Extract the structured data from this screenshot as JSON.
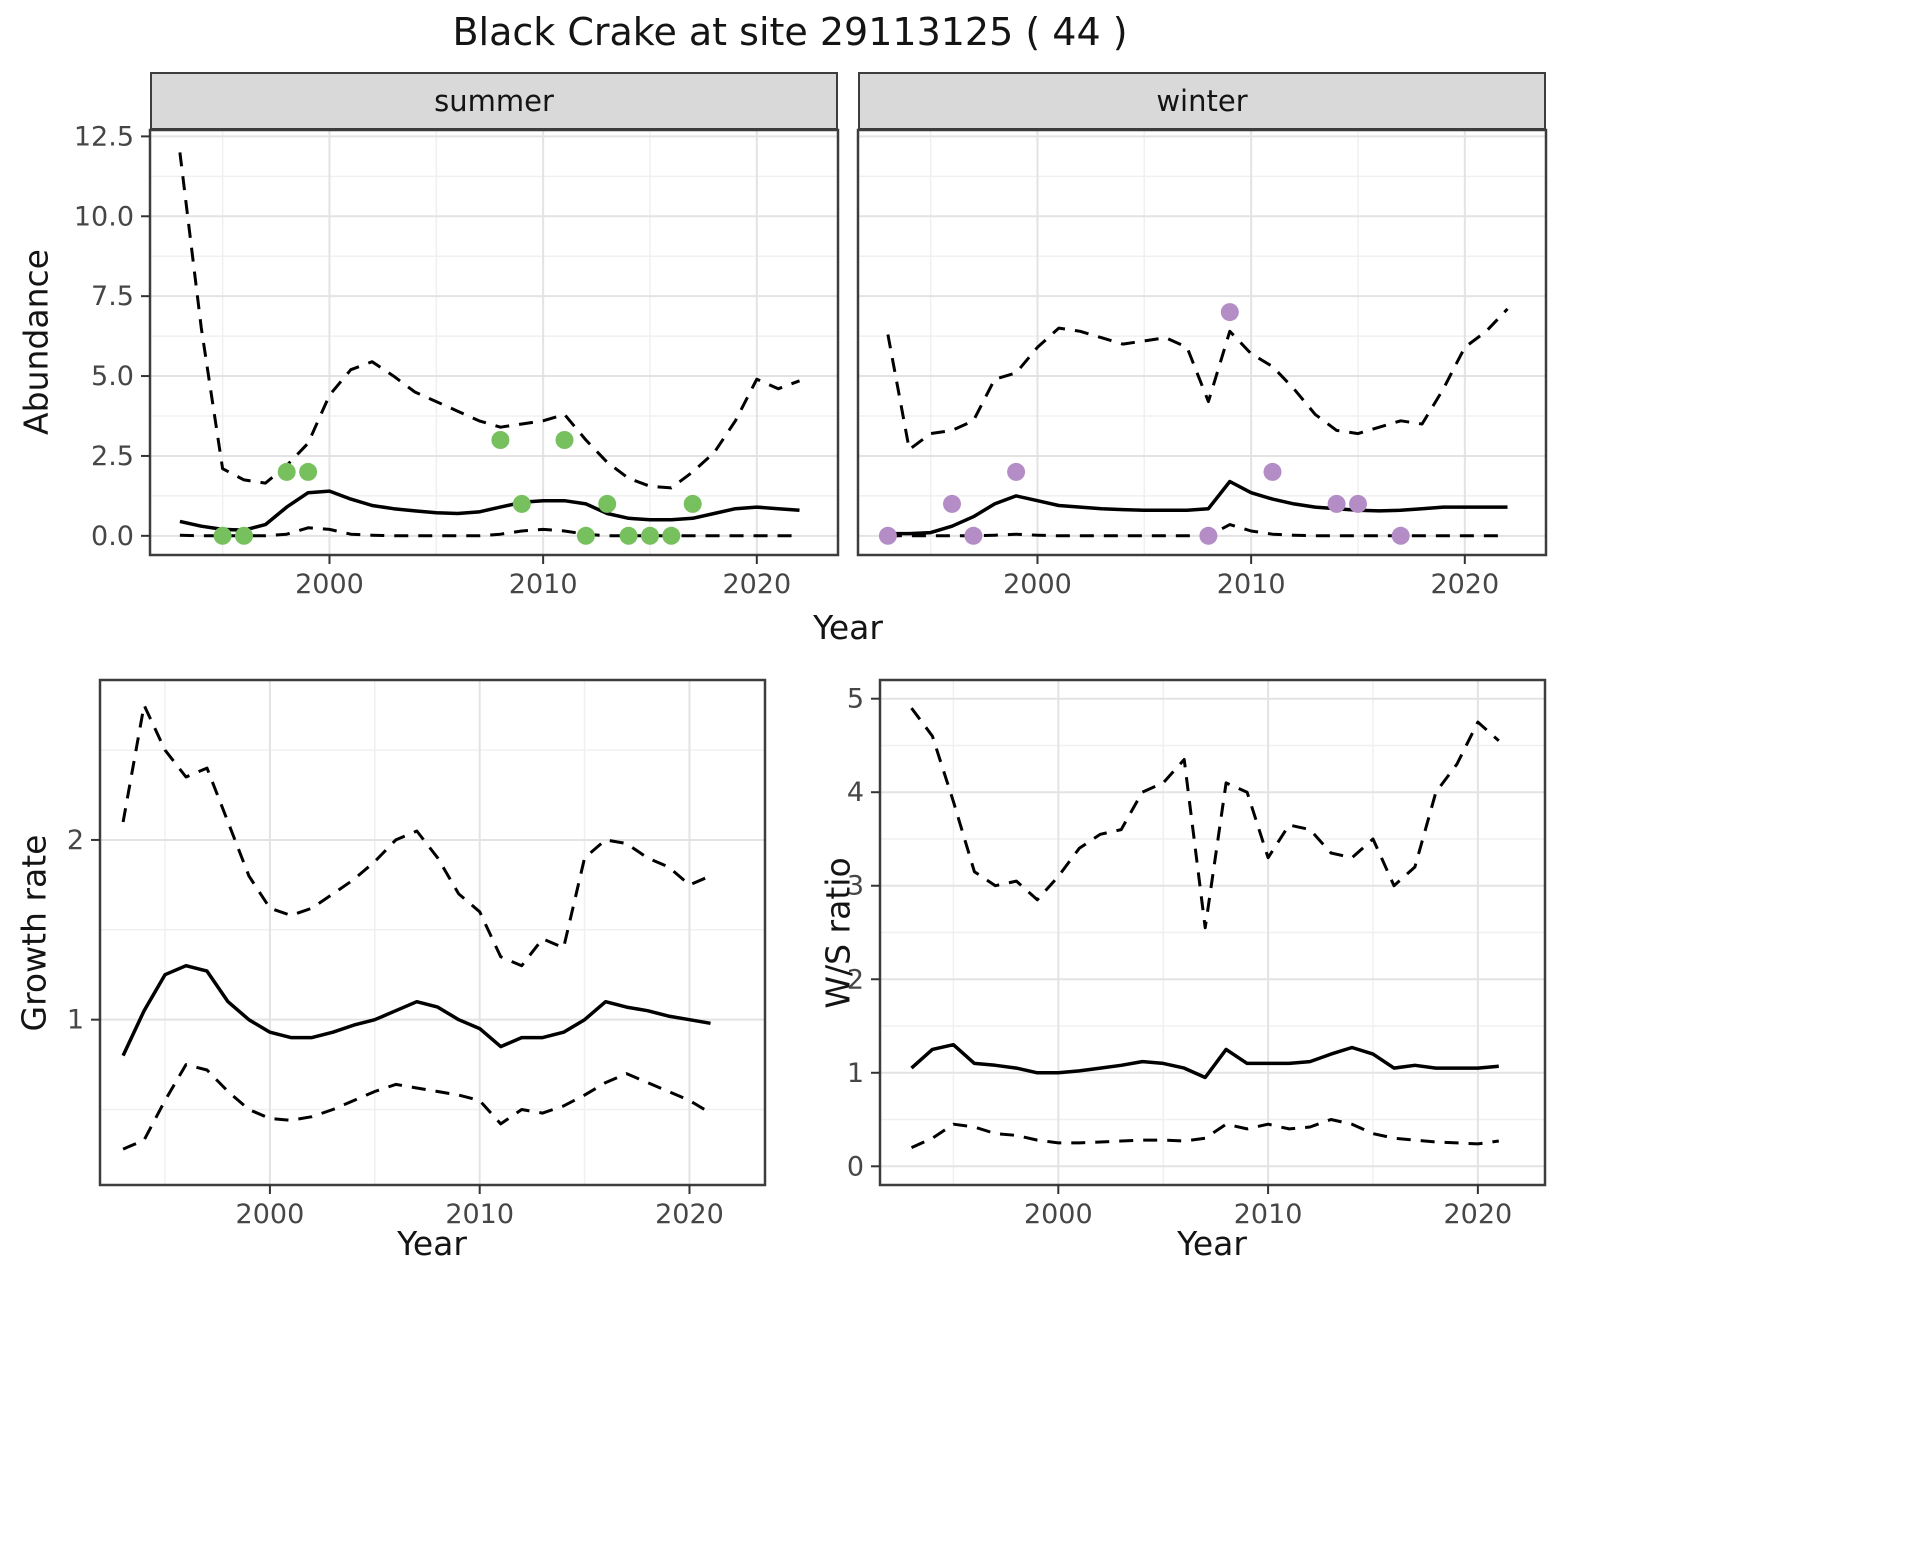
{
  "title": "Black Crake at site 29113125 ( 44 )",
  "colors": {
    "summer_points": "#77C05E",
    "winter_points": "#B48CC6",
    "line": "#000000",
    "strip_bg": "#D9D9D9",
    "grid_major": "#E3E3E3",
    "grid_minor": "#F0F0F0",
    "panel_border": "#3D3D3D",
    "tick_mark": "#333333"
  },
  "chart_data": [
    {
      "id": "abundance-summer",
      "type": "line",
      "facet": "summer",
      "title": "summer",
      "xlabel": "Year",
      "ylabel": "Abundance",
      "xlim": [
        1991.6,
        2023.8
      ],
      "ylim": [
        -0.6,
        12.7
      ],
      "xticks": [
        2000,
        2010,
        2020
      ],
      "xtick_labels": [
        "2000",
        "2010",
        "2020"
      ],
      "xminor": [
        1995,
        2005,
        2015
      ],
      "yticks": [
        0,
        2.5,
        5,
        7.5,
        10,
        12.5
      ],
      "ytick_labels": [
        "0.0",
        "2.5",
        "5.0",
        "7.5",
        "10.0",
        "12.5"
      ],
      "yminor": [
        1.25,
        3.75,
        6.25,
        8.75,
        11.25
      ],
      "grid": true,
      "legend": "none",
      "series": [
        {
          "name": "upper_95ci",
          "style": "dashed",
          "x_start": 1993,
          "y": [
            12.0,
            6.5,
            2.1,
            1.75,
            1.65,
            2.2,
            2.9,
            4.4,
            5.2,
            5.45,
            5.0,
            4.5,
            4.2,
            3.9,
            3.6,
            3.4,
            3.5,
            3.6,
            3.8,
            3.0,
            2.3,
            1.8,
            1.55,
            1.5,
            2.0,
            2.6,
            3.6,
            4.9,
            4.6,
            4.85
          ]
        },
        {
          "name": "mean",
          "style": "solid",
          "x_start": 1993,
          "y": [
            0.45,
            0.3,
            0.2,
            0.18,
            0.35,
            0.9,
            1.35,
            1.4,
            1.15,
            0.95,
            0.85,
            0.78,
            0.72,
            0.7,
            0.75,
            0.9,
            1.05,
            1.1,
            1.1,
            1.0,
            0.7,
            0.55,
            0.5,
            0.5,
            0.55,
            0.7,
            0.85,
            0.9,
            0.85,
            0.8
          ]
        },
        {
          "name": "lower_95ci",
          "style": "dashed",
          "x_start": 1993,
          "y": [
            0.02,
            0,
            0,
            0,
            0,
            0.05,
            0.25,
            0.2,
            0.05,
            0.02,
            0,
            0,
            0,
            0,
            0,
            0.05,
            0.15,
            0.2,
            0.15,
            0.05,
            0,
            0,
            0,
            0,
            0,
            0,
            0,
            0,
            0,
            0
          ]
        }
      ],
      "points": {
        "name": "observed-counts-summer",
        "color": "#77C05E",
        "data": [
          [
            1995,
            0
          ],
          [
            1996,
            0
          ],
          [
            1998,
            2
          ],
          [
            1999,
            2
          ],
          [
            2008,
            3
          ],
          [
            2009,
            1
          ],
          [
            2011,
            3
          ],
          [
            2012,
            0
          ],
          [
            2013,
            1
          ],
          [
            2014,
            0
          ],
          [
            2015,
            0
          ],
          [
            2016,
            0
          ],
          [
            2017,
            1
          ]
        ]
      }
    },
    {
      "id": "abundance-winter",
      "type": "line",
      "facet": "winter",
      "title": "winter",
      "xlabel": "Year",
      "ylabel": "Abundance",
      "xlim": [
        1991.6,
        2023.8
      ],
      "ylim": [
        -0.6,
        12.7
      ],
      "xticks": [
        2000,
        2010,
        2020
      ],
      "xtick_labels": [
        "2000",
        "2010",
        "2020"
      ],
      "xminor": [
        1995,
        2005,
        2015
      ],
      "yticks": [
        0,
        2.5,
        5,
        7.5,
        10,
        12.5
      ],
      "ytick_labels": [
        "0.0",
        "2.5",
        "5.0",
        "7.5",
        "10.0",
        "12.5"
      ],
      "yminor": [
        1.25,
        3.75,
        6.25,
        8.75,
        11.25
      ],
      "grid": true,
      "legend": "none",
      "series": [
        {
          "name": "upper_95ci",
          "style": "dashed",
          "x_start": 1993,
          "y": [
            6.3,
            2.7,
            3.2,
            3.3,
            3.6,
            4.9,
            5.1,
            5.9,
            6.5,
            6.4,
            6.2,
            6.0,
            6.1,
            6.2,
            5.9,
            4.2,
            6.4,
            5.7,
            5.3,
            4.6,
            3.8,
            3.3,
            3.2,
            3.4,
            3.6,
            3.5,
            4.6,
            5.9,
            6.4,
            7.1
          ]
        },
        {
          "name": "mean",
          "style": "solid",
          "x_start": 1993,
          "y": [
            0.07,
            0.07,
            0.1,
            0.3,
            0.6,
            1.0,
            1.25,
            1.1,
            0.95,
            0.9,
            0.85,
            0.82,
            0.8,
            0.8,
            0.8,
            0.85,
            1.7,
            1.35,
            1.15,
            1.0,
            0.9,
            0.85,
            0.8,
            0.78,
            0.8,
            0.85,
            0.9,
            0.9,
            0.9,
            0.9
          ]
        },
        {
          "name": "lower_95ci",
          "style": "dashed",
          "x_start": 1993,
          "y": [
            0,
            0,
            0,
            0,
            0,
            0.02,
            0.05,
            0.02,
            0,
            0,
            0,
            0,
            0,
            0,
            0,
            0,
            0.35,
            0.15,
            0.05,
            0.02,
            0,
            0,
            0,
            0,
            0,
            0,
            0,
            0,
            0,
            0
          ]
        }
      ],
      "points": {
        "name": "observed-counts-winter",
        "color": "#B48CC6",
        "data": [
          [
            1993,
            0
          ],
          [
            1996,
            1
          ],
          [
            1997,
            0
          ],
          [
            1999,
            2
          ],
          [
            2008,
            0
          ],
          [
            2009,
            7
          ],
          [
            2011,
            2
          ],
          [
            2014,
            1
          ],
          [
            2015,
            1
          ],
          [
            2017,
            0
          ]
        ]
      }
    },
    {
      "id": "growth-rate",
      "type": "line",
      "title": "",
      "xlabel": "Year",
      "ylabel": "Growth rate",
      "xlim": [
        1991.9,
        2023.6
      ],
      "ylim": [
        0.08,
        2.89
      ],
      "xticks": [
        2000,
        2010,
        2020
      ],
      "xtick_labels": [
        "2000",
        "2010",
        "2020"
      ],
      "xminor": [
        1995,
        2005,
        2015
      ],
      "yticks": [
        1,
        2
      ],
      "ytick_labels": [
        "1",
        "2"
      ],
      "yminor": [
        0.5,
        1.5,
        2.5
      ],
      "grid": true,
      "legend": "none",
      "series": [
        {
          "name": "upper_95ci",
          "style": "dashed",
          "x_start": 1993,
          "y": [
            2.1,
            2.75,
            2.5,
            2.35,
            2.4,
            2.1,
            1.8,
            1.62,
            1.58,
            1.62,
            1.7,
            1.78,
            1.88,
            2.0,
            2.05,
            1.9,
            1.7,
            1.6,
            1.35,
            1.3,
            1.45,
            1.4,
            1.9,
            2.0,
            1.98,
            1.9,
            1.85,
            1.75,
            1.8
          ]
        },
        {
          "name": "mean",
          "style": "solid",
          "x_start": 1993,
          "y": [
            0.8,
            1.05,
            1.25,
            1.3,
            1.27,
            1.1,
            1.0,
            0.93,
            0.9,
            0.9,
            0.93,
            0.97,
            1.0,
            1.05,
            1.1,
            1.07,
            1.0,
            0.95,
            0.85,
            0.9,
            0.9,
            0.93,
            1.0,
            1.1,
            1.07,
            1.05,
            1.02,
            1.0,
            0.98
          ]
        },
        {
          "name": "lower_95ci",
          "style": "dashed",
          "x_start": 1993,
          "y": [
            0.28,
            0.33,
            0.55,
            0.75,
            0.72,
            0.6,
            0.5,
            0.45,
            0.44,
            0.46,
            0.5,
            0.55,
            0.6,
            0.64,
            0.62,
            0.6,
            0.58,
            0.55,
            0.42,
            0.5,
            0.48,
            0.52,
            0.58,
            0.65,
            0.7,
            0.65,
            0.6,
            0.55,
            0.48
          ]
        }
      ]
    },
    {
      "id": "ws-ratio",
      "type": "line",
      "title": "",
      "xlabel": "Year",
      "ylabel": "W/S ratio",
      "xlim": [
        1991.5,
        2023.2
      ],
      "ylim": [
        -0.2,
        5.2
      ],
      "xticks": [
        2000,
        2010,
        2020
      ],
      "xtick_labels": [
        "2000",
        "2010",
        "2020"
      ],
      "xminor": [
        1995,
        2005,
        2015
      ],
      "yticks": [
        0,
        1,
        2,
        3,
        4,
        5
      ],
      "ytick_labels": [
        "0",
        "1",
        "2",
        "3",
        "4",
        "5"
      ],
      "yminor": [
        0.5,
        1.5,
        2.5,
        3.5,
        4.5
      ],
      "grid": true,
      "legend": "none",
      "series": [
        {
          "name": "upper_95ci",
          "style": "dashed",
          "x_start": 1993,
          "y": [
            4.9,
            4.6,
            3.9,
            3.15,
            3.0,
            3.05,
            2.85,
            3.1,
            3.4,
            3.55,
            3.6,
            4.0,
            4.1,
            4.35,
            2.55,
            4.1,
            4.0,
            3.3,
            3.65,
            3.6,
            3.35,
            3.3,
            3.5,
            3.0,
            3.2,
            4.0,
            4.3,
            4.75,
            4.55
          ]
        },
        {
          "name": "mean",
          "style": "solid",
          "x_start": 1993,
          "y": [
            1.05,
            1.25,
            1.3,
            1.1,
            1.08,
            1.05,
            1.0,
            1.0,
            1.02,
            1.05,
            1.08,
            1.12,
            1.1,
            1.05,
            0.95,
            1.25,
            1.1,
            1.1,
            1.1,
            1.12,
            1.2,
            1.27,
            1.2,
            1.05,
            1.08,
            1.05,
            1.05,
            1.05,
            1.07
          ]
        },
        {
          "name": "lower_95ci",
          "style": "dashed",
          "x_start": 1993,
          "y": [
            0.2,
            0.3,
            0.45,
            0.42,
            0.35,
            0.33,
            0.28,
            0.25,
            0.25,
            0.26,
            0.27,
            0.28,
            0.28,
            0.27,
            0.3,
            0.45,
            0.4,
            0.45,
            0.4,
            0.42,
            0.5,
            0.45,
            0.35,
            0.3,
            0.28,
            0.26,
            0.25,
            0.24,
            0.27
          ]
        }
      ]
    }
  ]
}
